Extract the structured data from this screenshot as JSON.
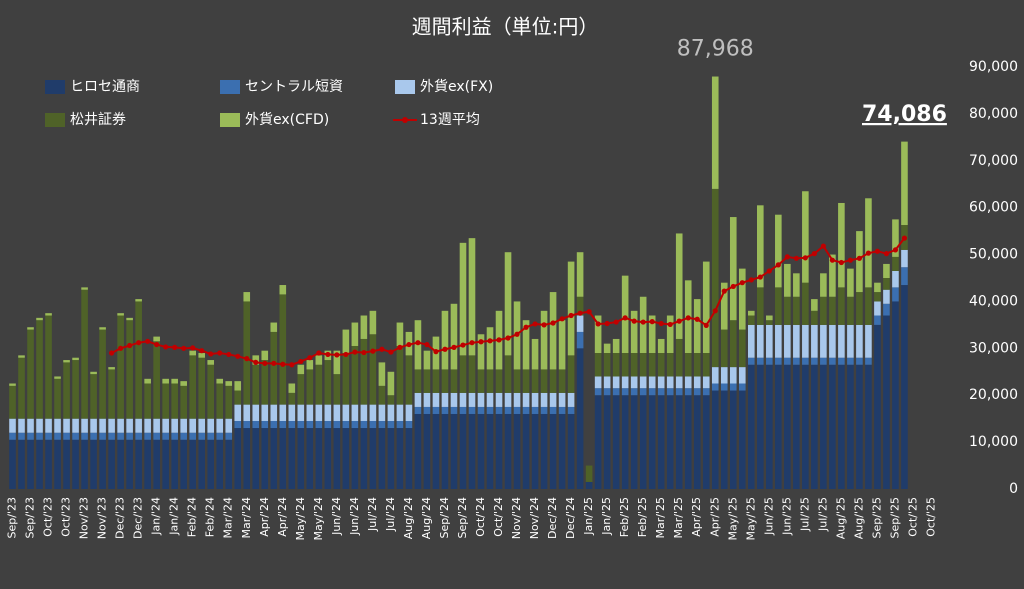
{
  "chart_data": {
    "type": "bar",
    "stacked": true,
    "title": "週間利益（単位:円）",
    "annotations": [
      "87,968",
      "74,086"
    ],
    "ylim": [
      0,
      90000
    ],
    "yticks": [
      0,
      {
        "value": 10000,
        "label": "10,000"
      },
      {
        "value": 20000,
        "label": "20,000"
      },
      {
        "value": 30000,
        "label": "30,000"
      },
      {
        "value": 40000,
        "label": "40,000"
      },
      {
        "value": 50000,
        "label": "50,000"
      },
      {
        "value": 60000,
        "label": "60,000"
      },
      {
        "value": 70000,
        "label": "70,000"
      },
      {
        "value": 80000,
        "label": "80,000"
      },
      {
        "value": 90000,
        "label": "90,000"
      }
    ],
    "categories": [
      "Sep/'23",
      null,
      "Sep/'23",
      null,
      "Oct/'23",
      null,
      "Oct/'23",
      null,
      "Nov/'23",
      null,
      "Nov/'23",
      null,
      "Dec/'23",
      null,
      "Dec/'23",
      null,
      "Jan/'24",
      null,
      "Jan/'24",
      null,
      "Feb/'24",
      null,
      "Feb/'24",
      null,
      "Mar/'24",
      null,
      "Mar/'24",
      null,
      "Apr/'24",
      null,
      "Apr/'24",
      null,
      "May/'24",
      null,
      "May/'24",
      null,
      "Jun/'24",
      null,
      "Jun/'24",
      null,
      "Jul/'24",
      null,
      "Jul/'24",
      null,
      "Aug/'24",
      null,
      "Aug/'24",
      null,
      "Sep/'24",
      null,
      "Sep/'24",
      null,
      "Oct/'24",
      null,
      "Oct/'24",
      null,
      "Nov/'24",
      null,
      "Nov/'24",
      null,
      "Dec/'24",
      null,
      "Dec/'24",
      null,
      "Jan/'25",
      null,
      "Jan/'25",
      null,
      "Feb/'25",
      null,
      "Feb/'25",
      null,
      "Mar/'25",
      null,
      "Mar/'25",
      null,
      "Apr/'25",
      null,
      "Apr/'25",
      null,
      "May/'25",
      null,
      "May/'25",
      null,
      "Jun/'25",
      null,
      "Jun/'25",
      null,
      "Jul/'25",
      null,
      "Jul/'25",
      null,
      "Aug/'25",
      null,
      "Aug/'25",
      null,
      "Sep/'25",
      null,
      "Sep/'25",
      null,
      "Oct/'25",
      null,
      "Oct/'25",
      null
    ],
    "series": [
      {
        "name": "ヒロセ通商",
        "color": "#203c6a",
        "values": [
          10500,
          10500,
          10500,
          10500,
          10500,
          10500,
          10500,
          10500,
          10500,
          10500,
          10500,
          10500,
          10500,
          10500,
          10500,
          10500,
          10500,
          10500,
          10500,
          10500,
          10500,
          10500,
          10500,
          10500,
          10500,
          13000,
          13000,
          13000,
          13000,
          13000,
          13000,
          13000,
          13000,
          13000,
          13000,
          13000,
          13000,
          13000,
          13000,
          13000,
          13000,
          13000,
          13000,
          13000,
          13000,
          16000,
          16000,
          16000,
          16000,
          16000,
          16000,
          16000,
          16000,
          16000,
          16000,
          16000,
          16000,
          16000,
          16000,
          16000,
          16000,
          16000,
          16000,
          30000,
          1500,
          20000,
          20000,
          20000,
          20000,
          20000,
          20000,
          20000,
          20000,
          20000,
          20000,
          20000,
          20000,
          20000,
          21000,
          21000,
          21000,
          21000,
          26500,
          26500,
          26500,
          26500,
          26500,
          26500,
          26500,
          26500,
          26500,
          26500,
          26500,
          26500,
          26500,
          26500,
          35000,
          37000,
          40000,
          43500,
          null,
          null,
          null,
          null
        ]
      },
      {
        "name": "セントラル短資",
        "color": "#3b6fb0",
        "values": [
          1500,
          1500,
          1500,
          1500,
          1500,
          1500,
          1500,
          1500,
          1500,
          1500,
          1500,
          1500,
          1500,
          1500,
          1500,
          1500,
          1500,
          1500,
          1500,
          1500,
          1500,
          1500,
          1500,
          1500,
          1500,
          1500,
          1500,
          1500,
          1500,
          1500,
          1500,
          1500,
          1500,
          1500,
          1500,
          1500,
          1500,
          1500,
          1500,
          1500,
          1500,
          1500,
          1500,
          1500,
          1500,
          1500,
          1500,
          1500,
          1500,
          1500,
          1500,
          1500,
          1500,
          1500,
          1500,
          1500,
          1500,
          1500,
          1500,
          1500,
          1500,
          1500,
          1500,
          3500,
          0,
          1500,
          1500,
          1500,
          1500,
          1500,
          1500,
          1500,
          1500,
          1500,
          1500,
          1500,
          1500,
          1500,
          1500,
          1500,
          1500,
          1500,
          1500,
          1500,
          1500,
          1500,
          1500,
          1500,
          1500,
          1500,
          1500,
          1500,
          1500,
          1500,
          1500,
          1500,
          2000,
          2500,
          3000,
          3800,
          null,
          null,
          null,
          null
        ]
      },
      {
        "name": "外貨ex(FX)",
        "color": "#a9c8ec",
        "values": [
          3000,
          3000,
          3000,
          3000,
          3000,
          3000,
          3000,
          3000,
          3000,
          3000,
          3000,
          3000,
          3000,
          3000,
          3000,
          3000,
          3000,
          3000,
          3000,
          3000,
          3000,
          3000,
          3000,
          3000,
          3000,
          3500,
          3500,
          3500,
          3500,
          3500,
          3500,
          3500,
          3500,
          3500,
          3500,
          3500,
          3500,
          3500,
          3500,
          3500,
          3500,
          3500,
          3500,
          3500,
          3500,
          3000,
          3000,
          3000,
          3000,
          3000,
          3000,
          3000,
          3000,
          3000,
          3000,
          3000,
          3000,
          3000,
          3000,
          3000,
          3000,
          3000,
          3000,
          3500,
          0,
          2500,
          2500,
          2500,
          2500,
          2500,
          2500,
          2500,
          2500,
          2500,
          2500,
          2500,
          2500,
          2500,
          3500,
          3500,
          3500,
          3500,
          7000,
          7000,
          7000,
          7000,
          7000,
          7000,
          7000,
          7000,
          7000,
          7000,
          7000,
          7000,
          7000,
          7000,
          3000,
          3000,
          3500,
          3700,
          null,
          null,
          null,
          null
        ]
      },
      {
        "name": "松井証券",
        "color": "#4f6228",
        "values": [
          7000,
          13000,
          19000,
          21000,
          22000,
          8500,
          12000,
          12500,
          27500,
          9500,
          19000,
          10500,
          22000,
          21000,
          25000,
          7500,
          16500,
          7500,
          7500,
          7000,
          13500,
          13000,
          11500,
          7500,
          7000,
          3000,
          22000,
          8500,
          9500,
          15500,
          23500,
          2500,
          6500,
          7500,
          8500,
          9500,
          6500,
          11000,
          12500,
          14000,
          15000,
          4000,
          2000,
          12500,
          10500,
          5000,
          5000,
          5000,
          5000,
          5000,
          8000,
          8000,
          5000,
          5000,
          5000,
          8000,
          5000,
          5000,
          5000,
          5000,
          5000,
          5000,
          8000,
          4000,
          3500,
          5000,
          5000,
          5000,
          5000,
          5000,
          5000,
          5000,
          5000,
          5000,
          8000,
          5000,
          5000,
          5000,
          38000,
          8000,
          10000,
          8000,
          2000,
          8000,
          1000,
          8000,
          6000,
          6000,
          9000,
          3000,
          6000,
          6000,
          8000,
          6000,
          7000,
          8000,
          2000,
          2500,
          3000,
          5300,
          null,
          null,
          null,
          null
        ]
      },
      {
        "name": "外貨ex(CFD)",
        "color": "#9bbb59",
        "values": [
          500,
          500,
          500,
          500,
          500,
          500,
          500,
          500,
          500,
          500,
          500,
          500,
          500,
          500,
          500,
          1000,
          1000,
          1000,
          1000,
          1000,
          1000,
          1000,
          1000,
          1000,
          1000,
          2000,
          2000,
          2000,
          2000,
          2000,
          2000,
          2000,
          2000,
          2000,
          2000,
          2000,
          5000,
          5000,
          5000,
          5000,
          5000,
          5000,
          5000,
          5000,
          5000,
          10500,
          4000,
          7000,
          12500,
          14000,
          24000,
          25000,
          7500,
          9000,
          12500,
          22000,
          14500,
          10500,
          6500,
          12500,
          16500,
          10500,
          20000,
          9500,
          0,
          8000,
          2000,
          3000,
          16500,
          9000,
          12000,
          8000,
          3000,
          8000,
          22500,
          15500,
          11500,
          19500,
          23968,
          10000,
          22000,
          13000,
          1000,
          17500,
          1000,
          15500,
          7000,
          5000,
          19500,
          2500,
          5000,
          9000,
          18000,
          6000,
          13000,
          19000,
          2000,
          3000,
          8000,
          17786,
          null,
          null,
          null,
          null
        ]
      },
      {
        "name": "13週平均",
        "type": "line",
        "color": "#c00000",
        "values": [
          null,
          null,
          null,
          null,
          null,
          null,
          null,
          null,
          null,
          null,
          null,
          29000,
          30000,
          30600,
          31200,
          31500,
          30800,
          30300,
          30200,
          30000,
          30100,
          29500,
          28800,
          29000,
          28700,
          28300,
          27800,
          27000,
          26800,
          26800,
          26600,
          26500,
          27200,
          28000,
          29000,
          28700,
          28600,
          28700,
          29200,
          29100,
          29400,
          29800,
          29200,
          30200,
          30800,
          31200,
          30800,
          29300,
          29800,
          30200,
          30700,
          31200,
          31400,
          31600,
          31800,
          32200,
          33000,
          34500,
          35200,
          35000,
          35400,
          36300,
          37000,
          37500,
          37800,
          35200,
          35300,
          35600,
          36500,
          35800,
          35600,
          35700,
          35300,
          35100,
          35800,
          36500,
          36200,
          34900,
          38000,
          42200,
          43200,
          44000,
          44600,
          45200,
          46500,
          47800,
          49500,
          49200,
          49300,
          50200,
          51800,
          48800,
          48300,
          48800,
          49200,
          50300,
          50700,
          50200,
          51000,
          53500,
          null,
          null,
          null,
          null
        ]
      }
    ]
  }
}
